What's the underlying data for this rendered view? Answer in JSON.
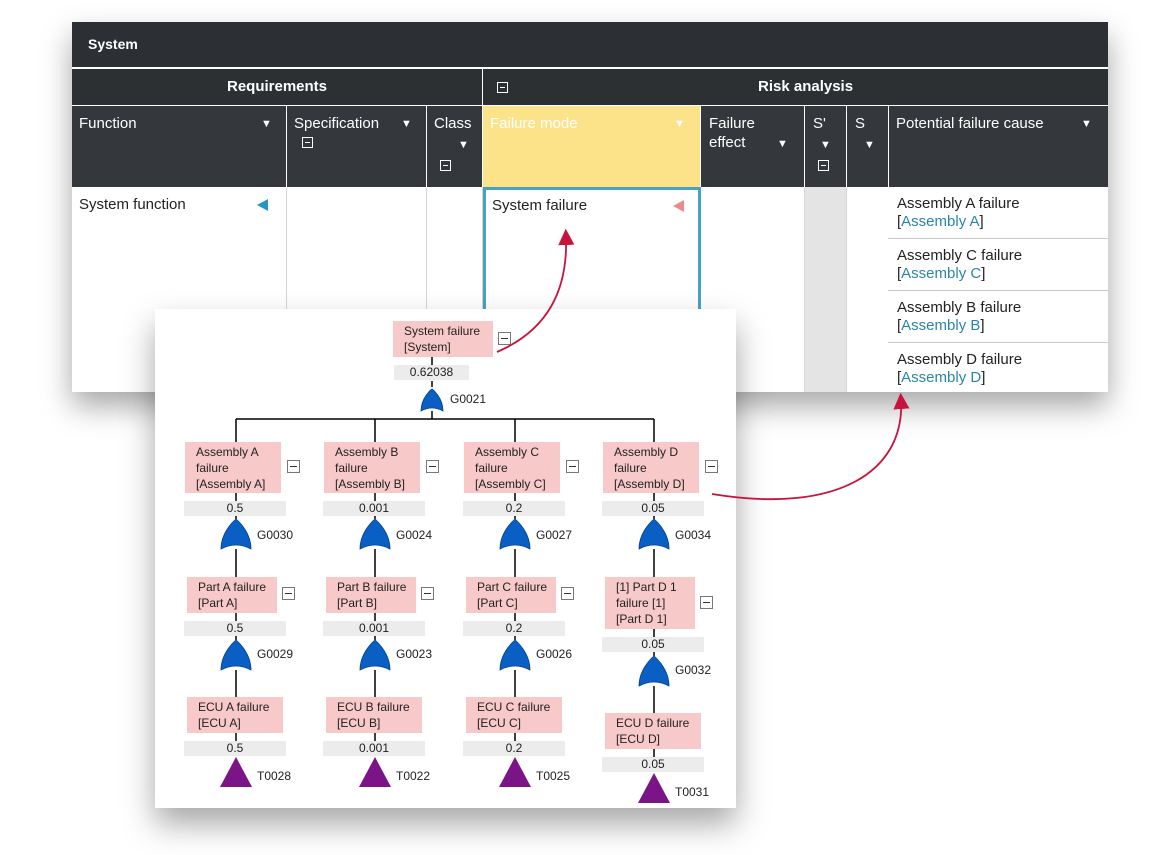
{
  "window": {
    "title": "System"
  },
  "groups": {
    "requirements": "Requirements",
    "risk": "Risk analysis"
  },
  "columns": {
    "function": "Function",
    "specification": "Specification",
    "class": "Class",
    "failure_mode": "Failure mode",
    "failure_effect_1": "Failure",
    "failure_effect_2": "effect",
    "s_prime": "S'",
    "s": "S",
    "cause": "Potential failure cause"
  },
  "row": {
    "function": "System function",
    "failure_mode": "System failure",
    "causes": [
      {
        "text": "Assembly A failure",
        "link": "Assembly A"
      },
      {
        "text": "Assembly C failure",
        "link": "Assembly C"
      },
      {
        "text": "Assembly B failure",
        "link": "Assembly B"
      },
      {
        "text": "Assembly D failure",
        "link": "Assembly D"
      }
    ]
  },
  "fta": {
    "top": {
      "line1": "System failure",
      "line2": "[System]",
      "prob": "0.62038",
      "gate": "G0021"
    },
    "branches": [
      {
        "l1": {
          "a": "Assembly A",
          "b": "failure",
          "c": "[Assembly A]",
          "prob": "0.5",
          "gate": "G0030"
        },
        "l2": {
          "a": "Part A failure",
          "b": "[Part A]",
          "prob": "0.5",
          "gate": "G0029"
        },
        "l3": {
          "a": "ECU A failure",
          "b": "[ECU A]",
          "prob": "0.5",
          "gate": "T0028"
        }
      },
      {
        "l1": {
          "a": "Assembly B",
          "b": "failure",
          "c": "[Assembly B]",
          "prob": "0.001",
          "gate": "G0024"
        },
        "l2": {
          "a": "Part B failure",
          "b": "[Part B]",
          "prob": "0.001",
          "gate": "G0023"
        },
        "l3": {
          "a": "ECU B failure",
          "b": "[ECU B]",
          "prob": "0.001",
          "gate": "T0022"
        }
      },
      {
        "l1": {
          "a": "Assembly C",
          "b": "failure",
          "c": "[Assembly C]",
          "prob": "0.2",
          "gate": "G0027"
        },
        "l2": {
          "a": "Part C failure",
          "b": "[Part C]",
          "prob": "0.2",
          "gate": "G0026"
        },
        "l3": {
          "a": "ECU C failure",
          "b": "[ECU C]",
          "prob": "0.2",
          "gate": "T0025"
        }
      },
      {
        "l1": {
          "a": "Assembly D",
          "b": "failure",
          "c": "[Assembly D]",
          "prob": "0.05",
          "gate": "G0034"
        },
        "l2": {
          "a": "[1] Part D 1",
          "b": "failure [1]",
          "c": "[Part D 1]",
          "prob": "0.05",
          "gate": "G0032"
        },
        "l3": {
          "a": "ECU D failure",
          "b": "[ECU D]",
          "prob": "0.05",
          "gate": "T0031"
        }
      }
    ]
  },
  "colors": {
    "gate": "#0a5fc4",
    "basic_event": "#7b1486",
    "event_box": "#f8c9c9",
    "arrow": "#c8143c",
    "highlight": "#fce38a",
    "selected_border": "#47a3c4"
  }
}
